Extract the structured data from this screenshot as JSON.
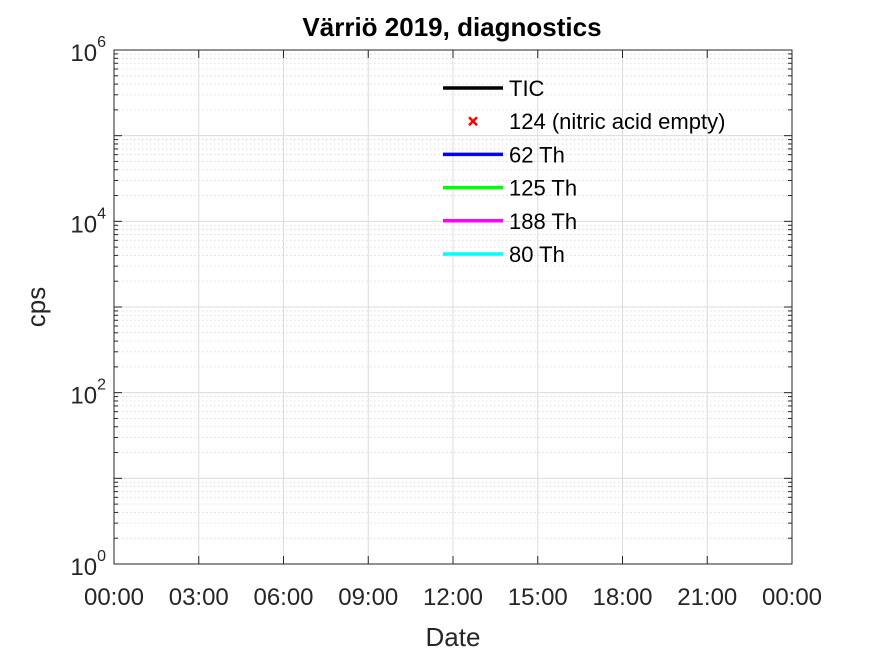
{
  "chart_data": {
    "type": "line",
    "title": "Värriö 2019, diagnostics",
    "xlabel": "Date",
    "ylabel": "cps",
    "yscale": "log",
    "ylim": [
      1,
      1000000
    ],
    "xlim": [
      "00:00",
      "24:00"
    ],
    "x_ticks": [
      "00:00",
      "03:00",
      "06:00",
      "09:00",
      "12:00",
      "15:00",
      "18:00",
      "21:00",
      "00:00"
    ],
    "y_ticks": [
      {
        "base": "10",
        "exp": "0"
      },
      {
        "base": "10",
        "exp": "2"
      },
      {
        "base": "10",
        "exp": "4"
      },
      {
        "base": "10",
        "exp": "6"
      }
    ],
    "grid": true,
    "legend_position": "top-right",
    "series": [
      {
        "name": "TIC",
        "color": "#000000",
        "marker": "line",
        "values": []
      },
      {
        "name": "124 (nitric acid empty)",
        "color": "#ff0000",
        "marker": "x",
        "values": []
      },
      {
        "name": "62 Th",
        "color": "#0000ff",
        "marker": "line",
        "values": []
      },
      {
        "name": "125 Th",
        "color": "#00ff00",
        "marker": "line",
        "values": []
      },
      {
        "name": "188 Th",
        "color": "#ff00ff",
        "marker": "line",
        "values": []
      },
      {
        "name": "80 Th",
        "color": "#00ffff",
        "marker": "line",
        "values": []
      }
    ]
  }
}
